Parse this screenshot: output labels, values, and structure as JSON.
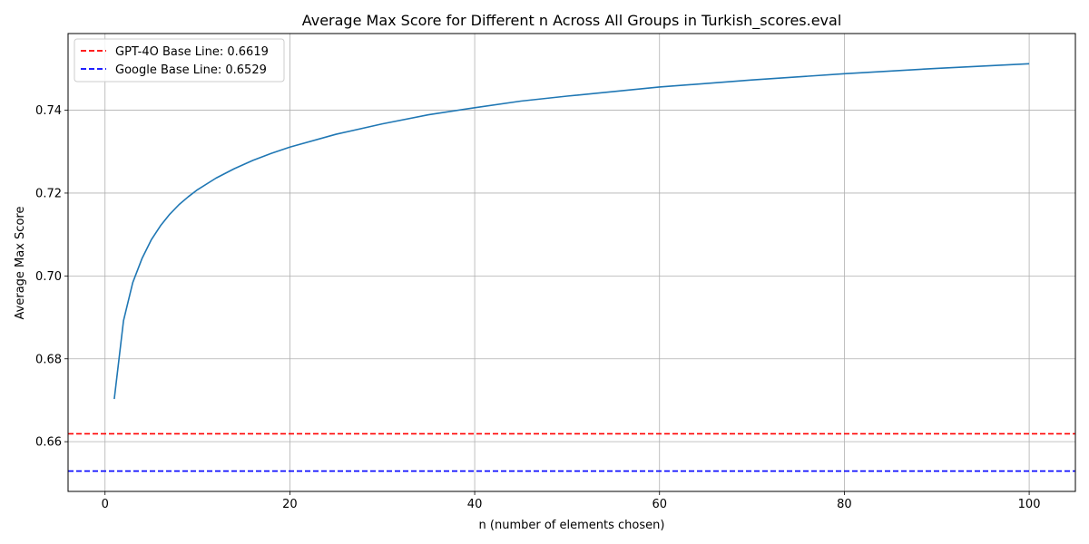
{
  "chart_data": {
    "type": "line",
    "title": "Average Max Score for Different n Across All Groups in Turkish_scores.eval",
    "xlabel": "n (number of elements chosen)",
    "ylabel": "Average Max Score",
    "xlim": [
      -4,
      105
    ],
    "ylim": [
      0.648,
      0.7585
    ],
    "xticks": [
      0,
      20,
      40,
      60,
      80,
      100
    ],
    "xtick_labels": [
      "0",
      "20",
      "40",
      "60",
      "80",
      "100"
    ],
    "yticks": [
      0.66,
      0.68,
      0.7,
      0.72,
      0.74
    ],
    "ytick_labels": [
      "0.66",
      "0.68",
      "0.70",
      "0.72",
      "0.74"
    ],
    "grid": true,
    "legend_position": "top-left",
    "series": [
      {
        "style": "solid",
        "color": "#1f77b4",
        "x": [
          1,
          2,
          3,
          4,
          5,
          6,
          7,
          8,
          9,
          10,
          12,
          14,
          16,
          18,
          20,
          25,
          30,
          35,
          40,
          45,
          50,
          60,
          70,
          80,
          90,
          100
        ],
        "y": [
          0.6703,
          0.6892,
          0.6984,
          0.7042,
          0.7087,
          0.7121,
          0.7149,
          0.7172,
          0.7191,
          0.7208,
          0.7236,
          0.7259,
          0.7279,
          0.7296,
          0.7311,
          0.7342,
          0.7367,
          0.7389,
          0.7406,
          0.7422,
          0.7434,
          0.7456,
          0.7473,
          0.7488,
          0.7501,
          0.7512
        ]
      }
    ],
    "reference_lines": [
      {
        "name": "GPT-4O Base Line: 0.6619",
        "value": 0.6619,
        "color": "#ff0000",
        "style": "dashed"
      },
      {
        "name": "Google Base Line: 0.6529",
        "value": 0.6529,
        "color": "#0000ff",
        "style": "dashed"
      }
    ]
  }
}
